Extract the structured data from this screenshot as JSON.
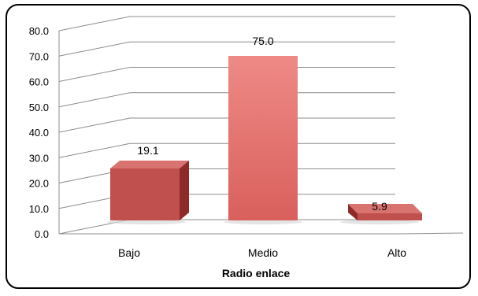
{
  "chart_data": {
    "type": "bar",
    "categories": [
      "Bajo",
      "Medio",
      "Alto"
    ],
    "values": [
      19.1,
      75.0,
      5.9
    ],
    "data_labels": [
      "19.1",
      "75.0",
      "5.9"
    ],
    "title": "",
    "xlabel": "Radio enlace",
    "ylabel": "",
    "ylim": [
      0,
      80
    ],
    "yticks": [
      "0.0",
      "10.0",
      "20.0",
      "30.0",
      "40.0",
      "50.0",
      "60.0",
      "70.0",
      "80.0"
    ],
    "grid": true,
    "style": "3d-column",
    "colors": {
      "bar_front": "#c0504d",
      "bar_top": "#d9736f",
      "bar_side": "#8e2b28",
      "highlight": "#e98683",
      "grid": "#8c8c8c"
    }
  }
}
